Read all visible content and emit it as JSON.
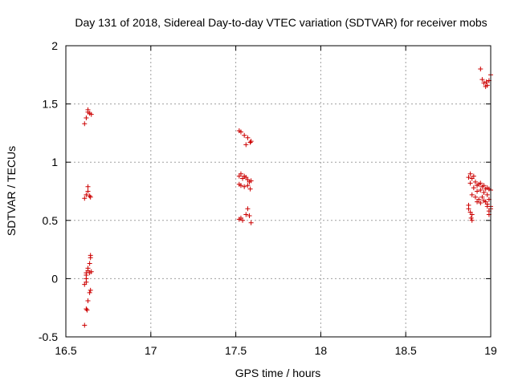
{
  "chart_data": {
    "type": "scatter",
    "title": "Day 131 of 2018, Sidereal Day-to-day VTEC variation (SDTVAR) for receiver mobs",
    "xlabel": "GPS time / hours",
    "ylabel": "SDTVAR / TECUs",
    "xlim": [
      16.5,
      19
    ],
    "ylim": [
      -0.5,
      2
    ],
    "x_ticks": [
      16.5,
      17,
      17.5,
      18,
      18.5,
      19
    ],
    "x_tick_labels": [
      "16.5",
      "17",
      "17.5",
      "18",
      "18.5",
      "19"
    ],
    "y_ticks": [
      -0.5,
      0,
      0.5,
      1,
      1.5,
      2
    ],
    "y_tick_labels": [
      "-0.5",
      "0",
      "0.5",
      "1",
      "1.5",
      "2"
    ],
    "grid": true,
    "marker": "+",
    "series": [
      {
        "name": "SDTVAR",
        "color": "#cc0000",
        "points": [
          [
            16.61,
            1.33
          ],
          [
            16.62,
            1.38
          ],
          [
            16.63,
            1.43
          ],
          [
            16.63,
            1.45
          ],
          [
            16.64,
            1.42
          ],
          [
            16.65,
            1.41
          ],
          [
            16.61,
            0.69
          ],
          [
            16.62,
            0.72
          ],
          [
            16.63,
            0.75
          ],
          [
            16.63,
            0.79
          ],
          [
            16.64,
            0.71
          ],
          [
            16.645,
            0.7
          ],
          [
            16.645,
            0.2
          ],
          [
            16.645,
            0.18
          ],
          [
            16.64,
            0.13
          ],
          [
            16.63,
            0.09
          ],
          [
            16.63,
            0.07
          ],
          [
            16.62,
            0.05
          ],
          [
            16.64,
            0.05
          ],
          [
            16.65,
            0.06
          ],
          [
            16.62,
            0.03
          ],
          [
            16.62,
            0.0
          ],
          [
            16.62,
            -0.03
          ],
          [
            16.61,
            -0.05
          ],
          [
            16.645,
            -0.1
          ],
          [
            16.64,
            -0.12
          ],
          [
            16.63,
            -0.19
          ],
          [
            16.62,
            -0.26
          ],
          [
            16.625,
            -0.27
          ],
          [
            16.61,
            -0.4
          ],
          [
            17.52,
            1.27
          ],
          [
            17.53,
            1.26
          ],
          [
            17.55,
            1.23
          ],
          [
            17.57,
            1.21
          ],
          [
            17.585,
            1.17
          ],
          [
            17.59,
            1.18
          ],
          [
            17.56,
            1.15
          ],
          [
            17.52,
            0.88
          ],
          [
            17.53,
            0.9
          ],
          [
            17.54,
            0.86
          ],
          [
            17.55,
            0.88
          ],
          [
            17.56,
            0.87
          ],
          [
            17.57,
            0.85
          ],
          [
            17.58,
            0.83
          ],
          [
            17.59,
            0.84
          ],
          [
            17.52,
            0.81
          ],
          [
            17.53,
            0.8
          ],
          [
            17.55,
            0.79
          ],
          [
            17.57,
            0.8
          ],
          [
            17.585,
            0.77
          ],
          [
            17.52,
            0.51
          ],
          [
            17.53,
            0.52
          ],
          [
            17.54,
            0.5
          ],
          [
            17.56,
            0.55
          ],
          [
            17.57,
            0.6
          ],
          [
            17.58,
            0.54
          ],
          [
            17.59,
            0.48
          ],
          [
            18.94,
            1.8
          ],
          [
            18.95,
            1.71
          ],
          [
            18.96,
            1.68
          ],
          [
            18.97,
            1.65
          ],
          [
            18.975,
            1.69
          ],
          [
            18.98,
            1.66
          ],
          [
            18.99,
            1.7
          ],
          [
            19.0,
            1.75
          ],
          [
            18.87,
            0.87
          ],
          [
            18.88,
            0.9
          ],
          [
            18.89,
            0.86
          ],
          [
            18.9,
            0.88
          ],
          [
            18.91,
            0.83
          ],
          [
            18.92,
            0.8
          ],
          [
            18.93,
            0.81
          ],
          [
            18.94,
            0.82
          ],
          [
            18.95,
            0.79
          ],
          [
            18.96,
            0.8
          ],
          [
            18.97,
            0.77
          ],
          [
            18.98,
            0.78
          ],
          [
            18.99,
            0.77
          ],
          [
            18.88,
            0.82
          ],
          [
            18.9,
            0.78
          ],
          [
            18.92,
            0.75
          ],
          [
            18.94,
            0.76
          ],
          [
            18.96,
            0.74
          ],
          [
            18.98,
            0.72
          ],
          [
            19.0,
            0.76
          ],
          [
            18.89,
            0.72
          ],
          [
            18.91,
            0.7
          ],
          [
            18.93,
            0.68
          ],
          [
            18.95,
            0.7
          ],
          [
            18.97,
            0.66
          ],
          [
            18.99,
            0.68
          ],
          [
            18.92,
            0.66
          ],
          [
            18.94,
            0.65
          ],
          [
            18.96,
            0.67
          ],
          [
            18.98,
            0.64
          ],
          [
            19.0,
            0.62
          ],
          [
            18.87,
            0.63
          ],
          [
            18.87,
            0.6
          ],
          [
            18.88,
            0.57
          ],
          [
            18.89,
            0.55
          ],
          [
            18.885,
            0.52
          ],
          [
            18.89,
            0.5
          ],
          [
            18.99,
            0.58
          ],
          [
            18.99,
            0.55
          ],
          [
            19.0,
            0.6
          ],
          [
            18.98,
            0.62
          ]
        ]
      }
    ]
  }
}
